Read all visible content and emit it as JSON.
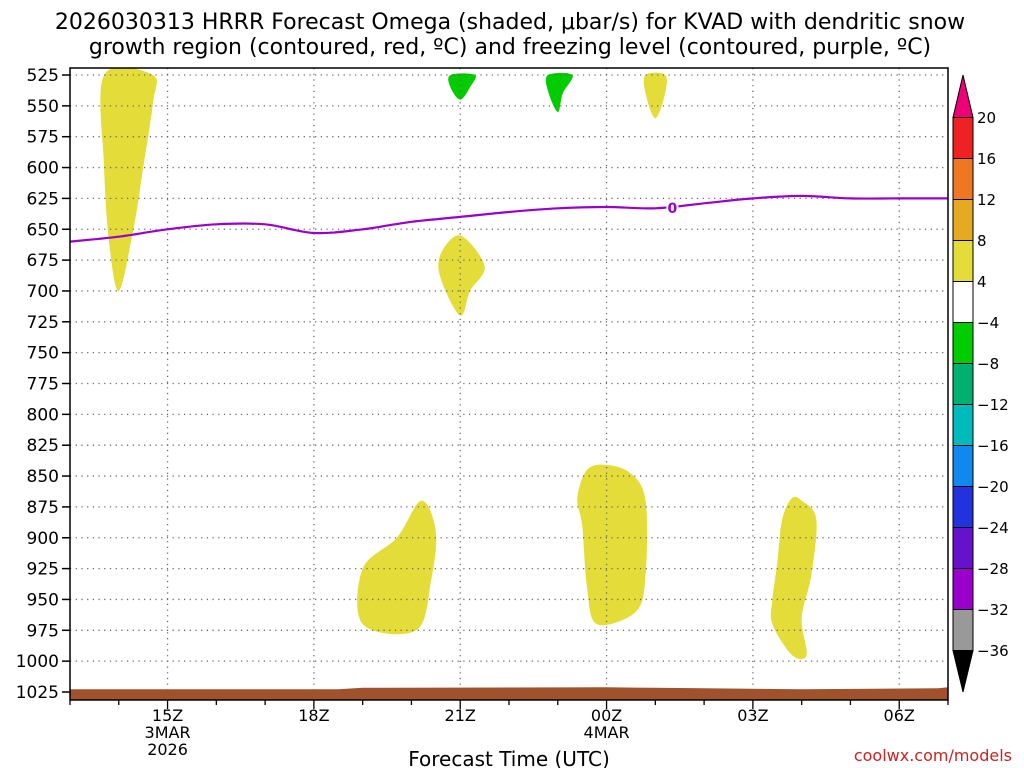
{
  "chart_data": {
    "type": "heatmap",
    "title_line1": "2026030313 HRRR Forecast Omega (shaded, μbar/s) for KVAD with dendritic snow",
    "title_line2": "growth region (contoured, red, ºC) and freezing level (contoured, purple, ºC)",
    "xlabel": "Forecast Time (UTC)",
    "credit": "coolwx.com/models",
    "x_units": "forecast hours since 2026030313",
    "xlim": [
      0,
      18
    ],
    "y_units": "mb",
    "ylim": [
      1025,
      525
    ],
    "pressure_levels": [
      525,
      550,
      575,
      600,
      625,
      650,
      675,
      700,
      725,
      750,
      775,
      800,
      825,
      850,
      875,
      900,
      925,
      950,
      975,
      1000,
      1025
    ],
    "pressure_labels": [
      "525",
      "550",
      "575",
      "600",
      "625",
      "650",
      "675",
      "700",
      "725",
      "750",
      "775",
      "800",
      "825",
      "850",
      "875",
      "900",
      "925",
      "950",
      "975",
      "1000",
      "1025"
    ],
    "time_ticks": [
      {
        "hour": 2,
        "line1": "15Z",
        "line2": "3MAR",
        "line3": "2026"
      },
      {
        "hour": 5,
        "line1": "18Z",
        "line2": "",
        "line3": ""
      },
      {
        "hour": 8,
        "line1": "21Z",
        "line2": "",
        "line3": ""
      },
      {
        "hour": 11,
        "line1": "00Z",
        "line2": "4MAR",
        "line3": ""
      },
      {
        "hour": 14,
        "line1": "03Z",
        "line2": "",
        "line3": ""
      },
      {
        "hour": 17,
        "line1": "06Z",
        "line2": "",
        "line3": ""
      }
    ],
    "freezing_level": {
      "label": "0",
      "color": "#9900cc",
      "points": [
        [
          0,
          660
        ],
        [
          1,
          656
        ],
        [
          2,
          650
        ],
        [
          3,
          646
        ],
        [
          4,
          646
        ],
        [
          5,
          653
        ],
        [
          6,
          650
        ],
        [
          7,
          644
        ],
        [
          8,
          640
        ],
        [
          9,
          636
        ],
        [
          10,
          633
        ],
        [
          11,
          632
        ],
        [
          12,
          633
        ],
        [
          13,
          629
        ],
        [
          14,
          625
        ],
        [
          15,
          623
        ],
        [
          16,
          625
        ],
        [
          17,
          625
        ],
        [
          18,
          625
        ]
      ]
    },
    "ground_color": "#a0522d",
    "ground_pressure": 1022,
    "omega_regions": [
      {
        "name": "ascent-3MAR-14Z-upper",
        "value_range": "4 to 8",
        "color": "#e4dc38",
        "points": [
          [
            0.7,
            525
          ],
          [
            1.7,
            525
          ],
          [
            1.7,
            548
          ],
          [
            1.5,
            600
          ],
          [
            1.3,
            650
          ],
          [
            1.0,
            700
          ],
          [
            0.8,
            660
          ],
          [
            0.7,
            600
          ]
        ]
      },
      {
        "name": "descent-21Z-upper",
        "value_range": "-8 to -4",
        "color": "#00cc00",
        "points": [
          [
            7.8,
            525
          ],
          [
            8.3,
            525
          ],
          [
            8.2,
            535
          ],
          [
            8.0,
            545
          ],
          [
            7.8,
            535
          ]
        ]
      },
      {
        "name": "descent-23Z-upper",
        "value_range": "-8 to -4",
        "color": "#00cc00",
        "points": [
          [
            9.8,
            525
          ],
          [
            10.3,
            525
          ],
          [
            10.1,
            540
          ],
          [
            10.0,
            555
          ],
          [
            9.8,
            538
          ]
        ]
      },
      {
        "name": "ascent-01Z-upper",
        "value_range": "4 to 8",
        "color": "#e4dc38",
        "points": [
          [
            11.8,
            525
          ],
          [
            12.2,
            525
          ],
          [
            12.2,
            540
          ],
          [
            12.0,
            560
          ],
          [
            11.8,
            540
          ]
        ]
      },
      {
        "name": "ascent-21Z-mid",
        "value_range": "4 to 8",
        "color": "#e4dc38",
        "points": [
          [
            8.0,
            655
          ],
          [
            8.5,
            680
          ],
          [
            8.2,
            700
          ],
          [
            8.0,
            720
          ],
          [
            7.6,
            690
          ],
          [
            7.6,
            670
          ]
        ]
      },
      {
        "name": "ascent-20Z-low",
        "value_range": "4 to 8",
        "color": "#e4dc38",
        "points": [
          [
            6.0,
            925
          ],
          [
            6.7,
            900
          ],
          [
            7.2,
            870
          ],
          [
            7.5,
            895
          ],
          [
            7.4,
            935
          ],
          [
            7.1,
            975
          ],
          [
            6.0,
            970
          ]
        ]
      },
      {
        "name": "ascent-00Z-low",
        "value_range": "4 to 8",
        "color": "#e4dc38",
        "points": [
          [
            10.4,
            868
          ],
          [
            10.6,
            845
          ],
          [
            11.0,
            841
          ],
          [
            11.5,
            848
          ],
          [
            11.8,
            870
          ],
          [
            11.8,
            930
          ],
          [
            11.6,
            960
          ],
          [
            10.8,
            970
          ],
          [
            10.6,
            940
          ],
          [
            10.5,
            890
          ]
        ]
      },
      {
        "name": "ascent-04Z-low",
        "value_range": "4 to 8",
        "color": "#e4dc38",
        "points": [
          [
            14.6,
            885
          ],
          [
            14.8,
            868
          ],
          [
            15.0,
            870
          ],
          [
            15.3,
            885
          ],
          [
            15.2,
            930
          ],
          [
            15.0,
            965
          ],
          [
            15.1,
            995
          ],
          [
            14.8,
            995
          ],
          [
            14.4,
            970
          ],
          [
            14.4,
            950
          ],
          [
            14.5,
            920
          ]
        ]
      }
    ],
    "colorbar": {
      "units": "μbar/s",
      "top_color": "#ee0077",
      "bottom_color": "#000000",
      "colors": [
        "#ee2222",
        "#ee7722",
        "#e4aa22",
        "#e4dc38",
        "#ffffff",
        "#00cc00",
        "#00b070",
        "#00bbbb",
        "#1188ee",
        "#2233dd",
        "#6611cc",
        "#9900cc",
        "#999999"
      ],
      "labels": [
        "20",
        "16",
        "12",
        "8",
        "4",
        "−4",
        "−8",
        "−12",
        "−16",
        "−20",
        "−24",
        "−28",
        "−32",
        "−36"
      ]
    }
  }
}
